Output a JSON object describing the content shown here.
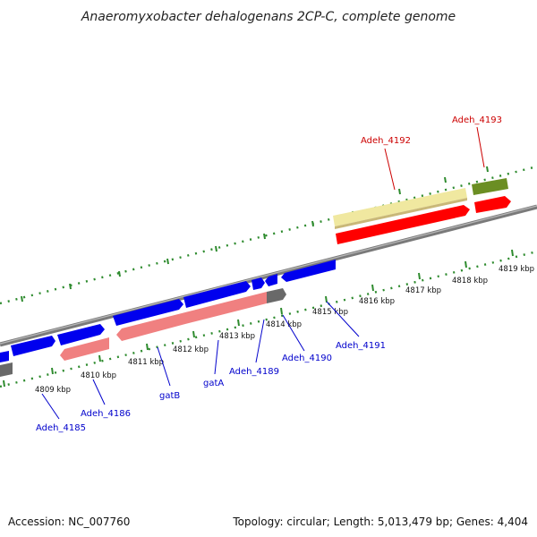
{
  "title": "Anaeromyxobacter dehalogenans 2CP-C, complete genome",
  "footer": {
    "accession": "Accession: NC_007760",
    "summary": "Topology: circular; Length: 5,013,479 bp; Genes: 4,404"
  },
  "colors": {
    "backbone": "#7a7a7a",
    "tick": "#2e8b2e",
    "forward_gene": "#0000ee",
    "reverse_gene": "#f08080",
    "pseudo_gene": "#696969",
    "highlight_red": "#ff0000",
    "highlight_cream": "#f0e8a0",
    "highlight_olive": "#6b8e23",
    "label_blue": "#0000cc",
    "label_red": "#cc0000"
  },
  "scale_ticks": [
    "4809 kbp",
    "4810 kbp",
    "4811 kbp",
    "4812 kbp",
    "4813 kbp",
    "4814 kbp",
    "4815 kbp",
    "4816 kbp",
    "4817 kbp",
    "4818 kbp",
    "4819 kbp"
  ],
  "gene_labels": [
    {
      "text": "Adeh_4185",
      "color": "blue"
    },
    {
      "text": "Adeh_4186",
      "color": "blue"
    },
    {
      "text": "gatB",
      "color": "blue"
    },
    {
      "text": "gatA",
      "color": "blue"
    },
    {
      "text": "Adeh_4189",
      "color": "blue"
    },
    {
      "text": "Adeh_4190",
      "color": "blue"
    },
    {
      "text": "Adeh_4191",
      "color": "blue"
    },
    {
      "text": "Adeh_4192",
      "color": "red"
    },
    {
      "text": "Adeh_4193",
      "color": "red"
    }
  ]
}
